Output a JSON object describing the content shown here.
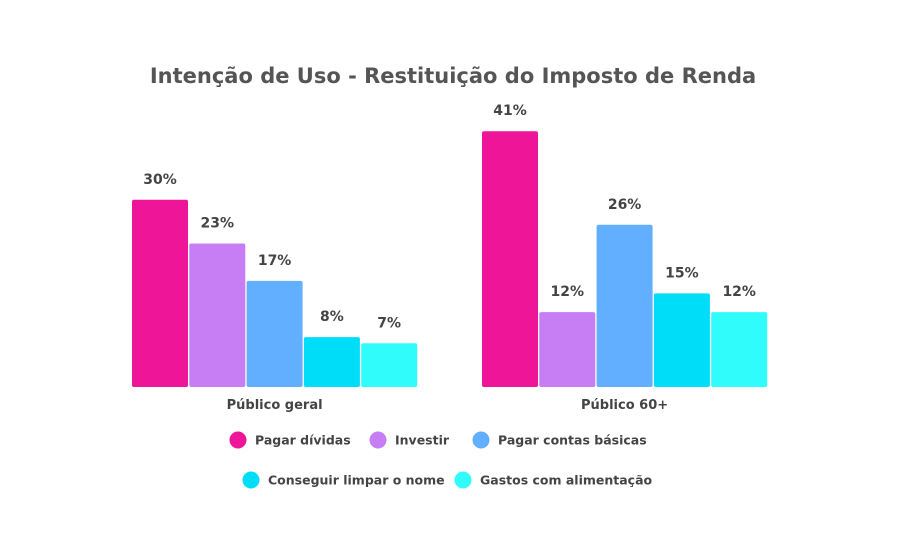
{
  "chart_data": {
    "type": "bar",
    "title": "Intenção de Uso - Restituição do Imposto de Renda",
    "categories": [
      "Público geral",
      "Público 60+"
    ],
    "series": [
      {
        "name": "Pagar dívidas",
        "values": [
          30,
          41
        ],
        "labels": [
          "30%",
          "41%"
        ],
        "color": "#EE1599"
      },
      {
        "name": "Investir",
        "values": [
          23,
          12
        ],
        "labels": [
          "23%",
          "12%"
        ],
        "color": "#C77DF3"
      },
      {
        "name": "Pagar contas básicas",
        "values": [
          17,
          26
        ],
        "labels": [
          "17%",
          "26%"
        ],
        "color": "#63AFFF"
      },
      {
        "name": "Conseguir limpar o nome",
        "values": [
          8,
          15
        ],
        "labels": [
          "8%",
          "15%"
        ],
        "color": "#00DDF8"
      },
      {
        "name": "Gastos com alimentação",
        "values": [
          7,
          12
        ],
        "labels": [
          "7%",
          "12%"
        ],
        "color": "#31FCFC"
      }
    ],
    "ylim": [
      0,
      41
    ],
    "grid": false,
    "legend": "bottom"
  }
}
